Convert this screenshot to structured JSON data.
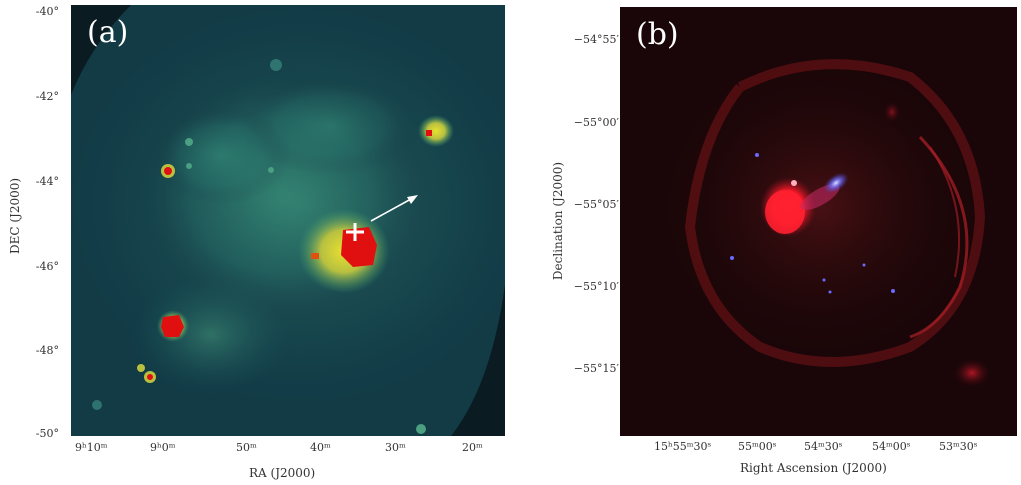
{
  "panel_a": {
    "label": "(a)",
    "y_axis_title": "DEC (J2000)",
    "x_axis_title": "RA (J2000)",
    "y_ticks": [
      "-40°",
      "-42°",
      "-44°",
      "-46°",
      "-48°",
      "-50°"
    ],
    "x_ticks": [
      "9ʰ10ᵐ",
      "9ʰ0ᵐ",
      "50ᵐ",
      "40ᵐ",
      "30ᵐ",
      "20ᵐ"
    ],
    "colors": {
      "background": "#0e2a33",
      "glow": "#2f8a78",
      "hot": "#e01010",
      "warm": "#d8c040",
      "marker": "#ffffff"
    }
  },
  "panel_b": {
    "label": "(b)",
    "y_axis_title": "Declination (J2000)",
    "x_axis_title": "Right Ascension (J2000)",
    "y_ticks": [
      "−54°55′",
      "−55°00′",
      "−55°05′",
      "−55°10′",
      "−55°15′"
    ],
    "x_ticks": [
      "15ʰ55ᵐ30ˢ",
      "55ᵐ00ˢ",
      "54ᵐ30ˢ",
      "54ᵐ00ˢ",
      "53ᵐ30ˢ"
    ],
    "colors": {
      "background": "#130507",
      "shell": "#8a1818",
      "blob": "#ff1a2a",
      "xray": "#6a6aff"
    }
  }
}
